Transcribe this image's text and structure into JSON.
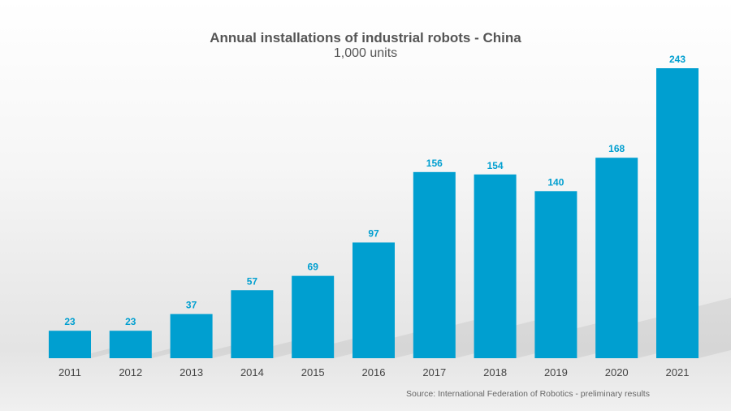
{
  "chart_data": {
    "type": "bar",
    "title": "Annual installations of industrial robots - China",
    "subtitle": "1,000 units",
    "categories": [
      "2011",
      "2012",
      "2013",
      "2014",
      "2015",
      "2016",
      "2017",
      "2018",
      "2019",
      "2020",
      "2021"
    ],
    "values": [
      23,
      23,
      37,
      57,
      69,
      97,
      156,
      154,
      140,
      168,
      243
    ],
    "ylim": [
      0,
      243
    ],
    "grid": false,
    "data_labels": true,
    "bar_color": "#009fd0",
    "label_color": "#009fd0",
    "source": "Source: International Federation of Robotics - preliminary results"
  }
}
